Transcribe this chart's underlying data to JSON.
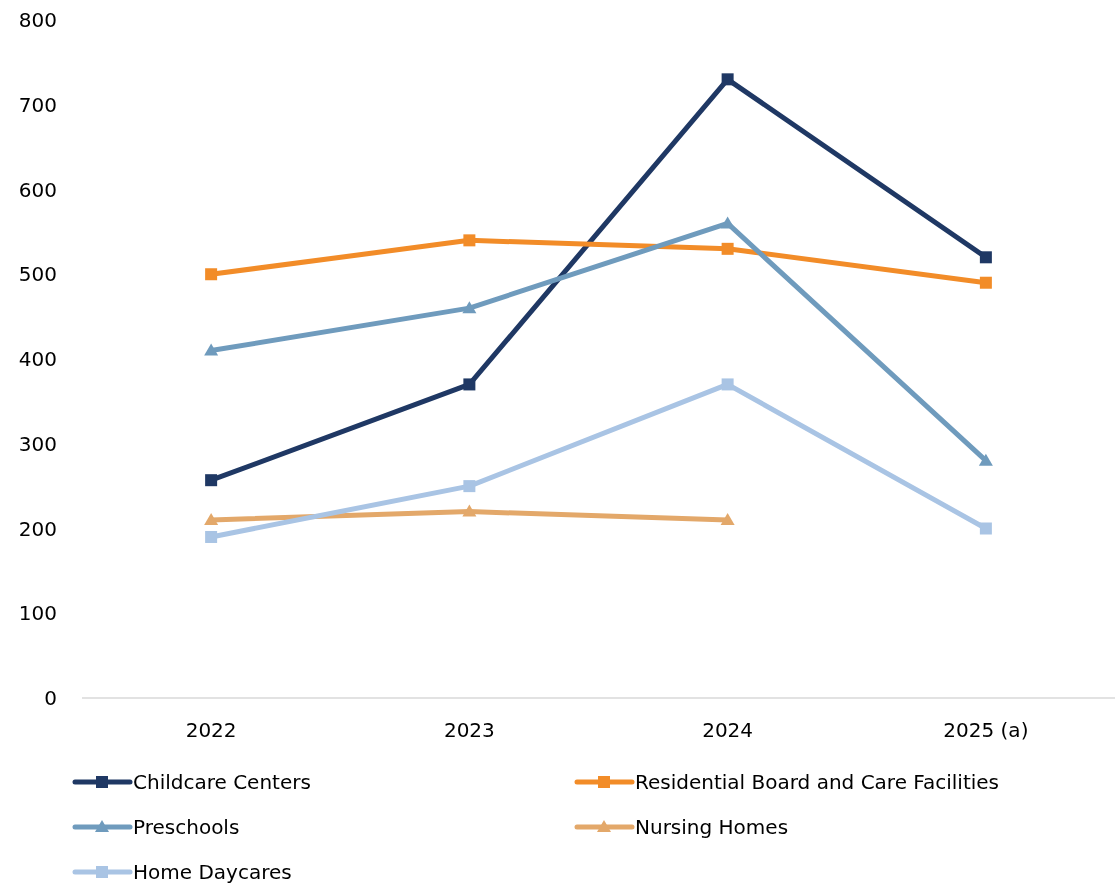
{
  "chart_data": {
    "type": "line",
    "categories": [
      "2022",
      "2023",
      "2024",
      "2025 (a)"
    ],
    "ylim": [
      0,
      800
    ],
    "yticks": [
      0,
      100,
      200,
      300,
      400,
      500,
      600,
      700,
      800
    ],
    "grid": false,
    "legend": "bottom",
    "line_style": "solid",
    "series": [
      {
        "name": "Childcare Centers",
        "color": "#1f3864",
        "marker": "square",
        "values": [
          257,
          370,
          730,
          520
        ]
      },
      {
        "name": "Residential Board and Care Facilities",
        "color": "#f28c28",
        "marker": "square",
        "values": [
          500,
          540,
          530,
          490
        ]
      },
      {
        "name": "Preschools",
        "color": "#6f9bbd",
        "marker": "triangle",
        "values": [
          410,
          460,
          560,
          280
        ]
      },
      {
        "name": "Nursing Homes",
        "color": "#e3a86a",
        "marker": "triangle",
        "values": [
          210,
          220,
          210,
          null
        ]
      },
      {
        "name": "Home Daycares",
        "color": "#a9c4e4",
        "marker": "square",
        "values": [
          190,
          250,
          370,
          200
        ]
      }
    ]
  }
}
